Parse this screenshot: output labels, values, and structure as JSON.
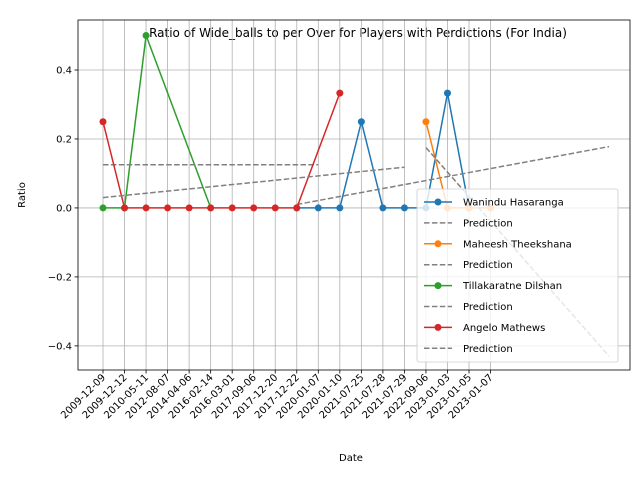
{
  "chart_data": {
    "type": "line",
    "title": "Ratio of Wide_balls to per Over for Players with Perdictions (For India)",
    "xlabel": "Date",
    "ylabel": "Ratio",
    "ylim": [
      -0.47,
      0.545
    ],
    "yticks": [
      -0.4,
      -0.2,
      0.0,
      0.2,
      0.4
    ],
    "yticklabels": [
      "−0.4",
      "−0.2",
      "0.0",
      "0.2",
      "0.4"
    ],
    "categories": [
      "2009-12-09",
      "2009-12-12",
      "2010-05-11",
      "2012-08-07",
      "2014-04-06",
      "2016-02-14",
      "2016-03-01",
      "2017-09-06",
      "2017-12-20",
      "2017-12-22",
      "2020-01-07",
      "2020-01-10",
      "2021-07-25",
      "2021-07-28",
      "2021-07-29",
      "2022-09-06",
      "2023-01-03",
      "2023-01-05",
      "2023-01-07"
    ],
    "grid": true,
    "legend_position": "lower right",
    "series": [
      {
        "name": "Wanindu Hasaranga",
        "color": "#1f77b4",
        "x": [
          9,
          10,
          11,
          12,
          13,
          14,
          15,
          16,
          17
        ],
        "values": [
          0,
          0,
          0,
          0.25,
          0,
          0,
          0,
          0.333,
          0
        ]
      },
      {
        "name": "Prediction",
        "color": "#808080",
        "dashed": true,
        "x": [
          9,
          23.5
        ],
        "values": [
          0.01,
          0.178
        ]
      },
      {
        "name": "Maheesh Theekshana",
        "color": "#ff7f0e",
        "x": [
          15,
          16,
          17,
          18
        ],
        "values": [
          0.25,
          0,
          0,
          0
        ]
      },
      {
        "name": "Prediction",
        "color": "#808080",
        "dashed": true,
        "x": [
          15,
          23.5
        ],
        "values": [
          0.175,
          -0.43
        ]
      },
      {
        "name": "Tillakaratne Dilshan",
        "color": "#2ca02c",
        "x": [
          0,
          1,
          2,
          5
        ],
        "values": [
          0,
          0,
          0.5,
          0
        ]
      },
      {
        "name": "Prediction",
        "color": "#808080",
        "dashed": true,
        "x": [
          0,
          10
        ],
        "values": [
          0.125,
          0.125
        ]
      },
      {
        "name": "Angelo Mathews",
        "color": "#d62728",
        "x": [
          0,
          1,
          2,
          3,
          4,
          5,
          6,
          7,
          8,
          9,
          11
        ],
        "values": [
          0.25,
          0,
          0,
          0,
          0,
          0,
          0,
          0,
          0,
          0,
          0.333
        ]
      },
      {
        "name": "Prediction",
        "color": "#808080",
        "dashed": true,
        "x": [
          0,
          14
        ],
        "values": [
          0.03,
          0.118
        ]
      }
    ]
  }
}
